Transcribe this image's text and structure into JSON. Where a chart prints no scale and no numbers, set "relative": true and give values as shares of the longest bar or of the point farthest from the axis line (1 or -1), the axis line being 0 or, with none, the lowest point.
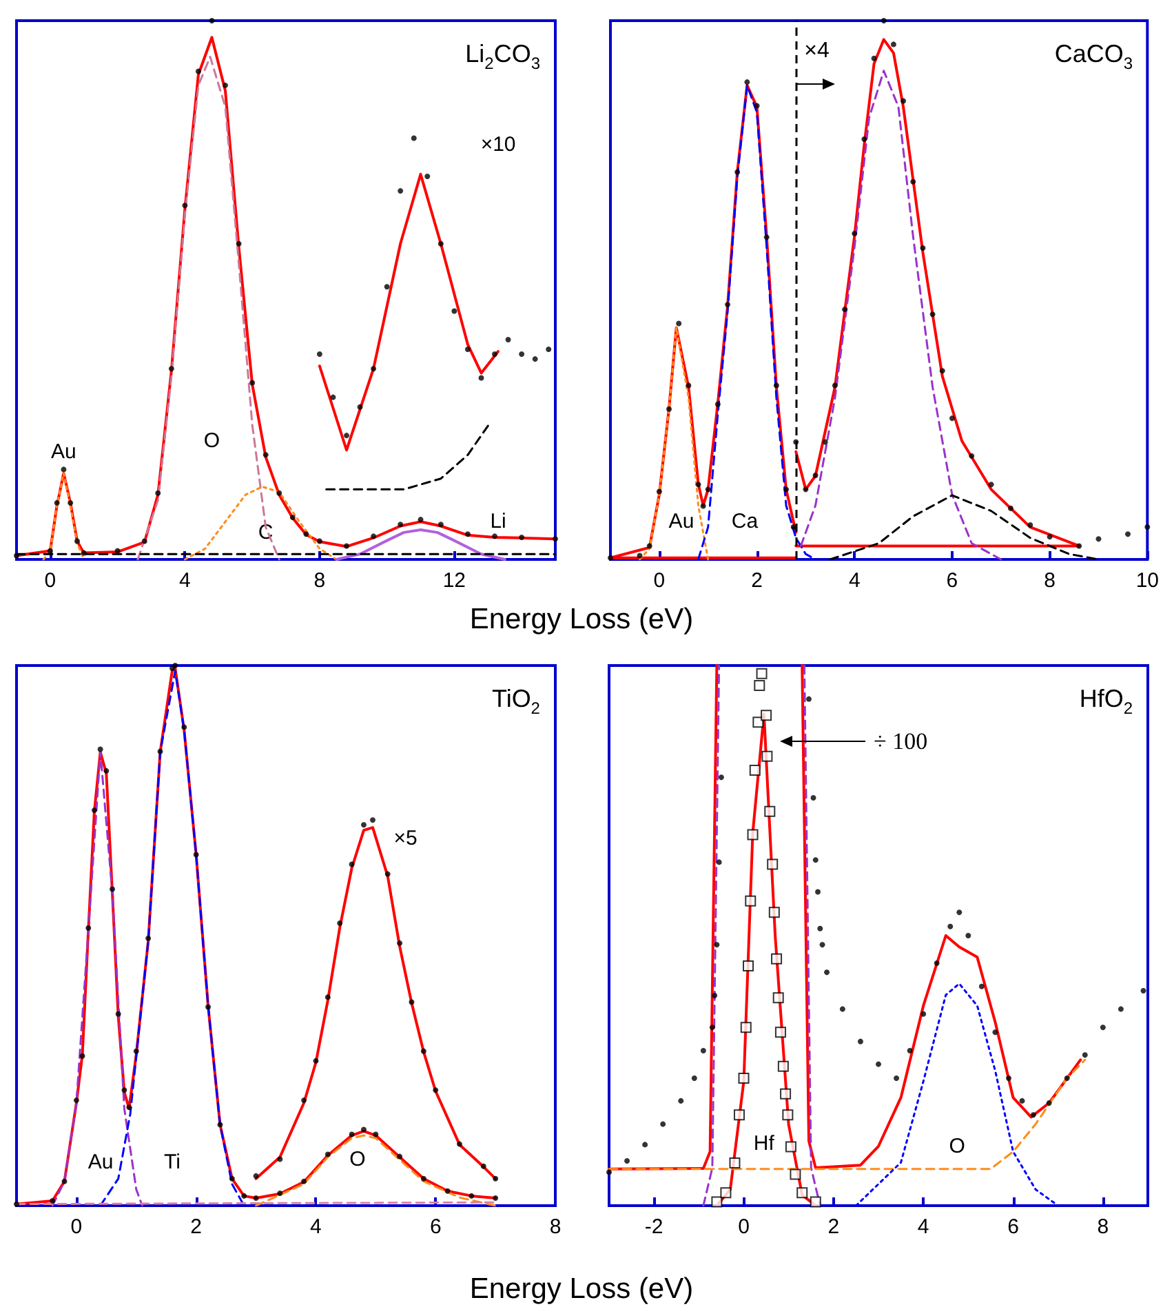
{
  "chart_data": [
    {
      "type": "line",
      "title": "Li$_{2}$CO$_{3}$",
      "xlabel": "Energy Loss (eV)",
      "relative": true,
      "xlim": [
        -1,
        15
      ],
      "xticks": [
        0,
        4,
        8,
        12
      ],
      "annotations": [
        "Au",
        "O",
        "C",
        "Li",
        "×10"
      ],
      "series": [
        {
          "type": "scatter",
          "marker": "circle",
          "color": "#000000",
          "x": [
            -1,
            0,
            0.2,
            0.4,
            0.6,
            0.8,
            1,
            2,
            2.8,
            3.2,
            3.6,
            4,
            4.4,
            4.8,
            5.2,
            5.6,
            6,
            6.4,
            6.8,
            7.2,
            7.6,
            8,
            8.8,
            9.6,
            10.4,
            11,
            11.6,
            12.4,
            13.2,
            14,
            15
          ],
          "values": [
            0.007,
            0.016,
            0.105,
            0.167,
            0.105,
            0.034,
            0.012,
            0.016,
            0.034,
            0.123,
            0.354,
            0.657,
            0.906,
            1,
            0.88,
            0.586,
            0.328,
            0.194,
            0.123,
            0.078,
            0.047,
            0.034,
            0.025,
            0.043,
            0.065,
            0.074,
            0.065,
            0.047,
            0.043,
            0.041,
            0.038
          ]
        },
        {
          "line_style": "solid",
          "color": "#ff0000",
          "x": [
            -1,
            0,
            0.2,
            0.4,
            0.6,
            0.8,
            1,
            2,
            2.8,
            3.2,
            3.6,
            4,
            4.4,
            4.8,
            5.2,
            5.6,
            6,
            6.4,
            6.8,
            7.2,
            7.6,
            8,
            8.8,
            9.6,
            10.4,
            11,
            11.6,
            12.4,
            13.2,
            14,
            15
          ],
          "values": [
            0.007,
            0.016,
            0.1,
            0.16,
            0.105,
            0.034,
            0.012,
            0.014,
            0.032,
            0.12,
            0.35,
            0.65,
            0.9,
            0.969,
            0.87,
            0.58,
            0.325,
            0.19,
            0.12,
            0.077,
            0.046,
            0.033,
            0.024,
            0.04,
            0.062,
            0.07,
            0.062,
            0.045,
            0.041,
            0.04,
            0.038
          ]
        },
        {
          "line_style": "dotted",
          "color": "#ff8c1a",
          "x": [
            -0.2,
            0,
            0.2,
            0.4,
            0.6,
            0.8,
            1
          ],
          "values": [
            0,
            0.015,
            0.1,
            0.16,
            0.1,
            0.03,
            0
          ]
        },
        {
          "line_style": "dashed",
          "color": "#cc7799",
          "x": [
            2.6,
            3.2,
            3.6,
            4,
            4.4,
            4.75,
            5.2,
            5.6,
            6,
            6.4,
            6.8
          ],
          "values": [
            0,
            0.11,
            0.34,
            0.64,
            0.88,
            0.933,
            0.84,
            0.55,
            0.25,
            0.06,
            0
          ]
        },
        {
          "line_style": "dotted",
          "color": "#ff8c1a",
          "x": [
            4,
            4.6,
            5.2,
            5.8,
            6.3,
            6.8,
            7.4,
            8,
            8.5
          ],
          "values": [
            0,
            0.02,
            0.07,
            0.12,
            0.135,
            0.125,
            0.07,
            0.02,
            0
          ]
        },
        {
          "line_style": "solid",
          "color": "#b060e0",
          "x": [
            8.5,
            9.2,
            10,
            10.5,
            11,
            11.5,
            12,
            12.8,
            13.5
          ],
          "values": [
            0,
            0.01,
            0.035,
            0.05,
            0.055,
            0.05,
            0.035,
            0.01,
            0
          ]
        },
        {
          "line_style": "dashed",
          "color": "#000000",
          "x": [
            -1,
            15
          ],
          "values": [
            0.01,
            0.01
          ]
        },
        {
          "type": "scatter",
          "marker": "circle",
          "color": "#000000",
          "x": [
            8,
            8.4,
            8.8,
            9.2,
            9.6,
            10,
            10.4,
            10.8,
            11.2,
            11.6,
            12,
            12.4,
            12.8,
            13.2,
            13.6,
            14,
            14.4,
            14.8
          ],
          "values": [
            0.381,
            0.301,
            0.23,
            0.283,
            0.354,
            0.506,
            0.684,
            0.782,
            0.711,
            0.586,
            0.461,
            0.39,
            0.337,
            0.381,
            0.408,
            0.381,
            0.372,
            0.39
          ]
        },
        {
          "line_style": "solid",
          "color": "#ff0000",
          "x": [
            8,
            8.8,
            9.6,
            10.4,
            11,
            11.6,
            12.4,
            12.8,
            13.3
          ],
          "values": [
            0.359,
            0.203,
            0.354,
            0.586,
            0.715,
            0.586,
            0.399,
            0.346,
            0.386
          ]
        },
        {
          "line_style": "dashed",
          "color": "#000000",
          "x": [
            8.2,
            10.5,
            11.6,
            12.4,
            13
          ],
          "values": [
            0.13,
            0.13,
            0.15,
            0.194,
            0.248
          ]
        }
      ]
    },
    {
      "type": "line",
      "title": "CaCO$_{3}$",
      "relative": true,
      "xlim": [
        -1,
        10
      ],
      "xticks": [
        0,
        2,
        4,
        6,
        8,
        10
      ],
      "annotations": [
        "Au",
        "Ca"
      ],
      "ref_lines": [
        {
          "axis": "x",
          "value": 2.8,
          "label": "×4",
          "color": "#000000",
          "line_style": "dashed"
        }
      ],
      "series": [
        {
          "type": "scatter",
          "marker": "circle",
          "color": "#000000",
          "x": [
            -1,
            -0.4,
            -0.2,
            0,
            0.2,
            0.4,
            0.6,
            0.8,
            0.9,
            1,
            1.2,
            1.4,
            1.6,
            1.8,
            2,
            2.2,
            2.4,
            2.6,
            2.75
          ],
          "values": [
            0.003,
            0.007,
            0.025,
            0.126,
            0.279,
            0.438,
            0.323,
            0.139,
            0.099,
            0.13,
            0.288,
            0.473,
            0.719,
            0.886,
            0.842,
            0.598,
            0.323,
            0.13,
            0.06
          ]
        },
        {
          "type": "scatter",
          "marker": "circle",
          "color": "#000000",
          "x": [
            2.8,
            3,
            3.2,
            3.4,
            3.6,
            3.8,
            4,
            4.2,
            4.4,
            4.6,
            4.8,
            5,
            5.2,
            5.4,
            5.6,
            5.8,
            6,
            6.4,
            6.8,
            7.2,
            7.6,
            8,
            8.6,
            9,
            9.6,
            10
          ],
          "values": [
            0.218,
            0.13,
            0.156,
            0.218,
            0.323,
            0.464,
            0.605,
            0.78,
            0.93,
            1,
            0.956,
            0.851,
            0.701,
            0.578,
            0.455,
            0.35,
            0.262,
            0.192,
            0.139,
            0.095,
            0.064,
            0.042,
            0.025,
            0.038,
            0.047,
            0.06
          ]
        },
        {
          "line_style": "solid",
          "color": "#ff0000",
          "x": [
            -1,
            -0.2,
            0,
            0.2,
            0.35,
            0.6,
            0.8,
            0.9,
            1,
            1.2,
            1.4,
            1.6,
            1.8,
            2,
            2.2,
            2.4,
            2.6,
            2.8
          ],
          "values": [
            0.003,
            0.022,
            0.12,
            0.28,
            0.43,
            0.32,
            0.14,
            0.1,
            0.13,
            0.29,
            0.47,
            0.72,
            0.88,
            0.84,
            0.6,
            0.32,
            0.13,
            0.05
          ]
        },
        {
          "line_style": "solid",
          "color": "#ff0000",
          "x": [
            2.8,
            3,
            3.2,
            3.6,
            4,
            4.2,
            4.4,
            4.6,
            4.8,
            5,
            5.4,
            5.8,
            6.2,
            6.8,
            7.6,
            8.6
          ],
          "values": [
            0.2,
            0.13,
            0.155,
            0.32,
            0.6,
            0.77,
            0.92,
            0.965,
            0.94,
            0.84,
            0.57,
            0.34,
            0.22,
            0.13,
            0.06,
            0.025
          ]
        },
        {
          "line_style": "solid",
          "color": "#ff0000",
          "x": [
            -1,
            2.8
          ],
          "values": [
            0.003,
            0.003
          ]
        },
        {
          "line_style": "solid",
          "color": "#ff0000",
          "x": [
            2.8,
            8.6
          ],
          "values": [
            0.025,
            0.025
          ]
        },
        {
          "line_style": "dotted",
          "color": "#ff8c1a",
          "x": [
            -0.4,
            -0.2,
            0,
            0.2,
            0.35,
            0.6,
            0.8,
            1
          ],
          "values": [
            0,
            0.02,
            0.12,
            0.28,
            0.43,
            0.3,
            0.1,
            0
          ]
        },
        {
          "line_style": "dashed",
          "color": "#0000ff",
          "x": [
            0.8,
            1,
            1.2,
            1.4,
            1.6,
            1.8,
            2,
            2.2,
            2.4,
            2.6,
            2.8,
            3,
            3.2
          ],
          "values": [
            0,
            0.06,
            0.27,
            0.46,
            0.71,
            0.88,
            0.83,
            0.58,
            0.3,
            0.1,
            0.04,
            0.01,
            0
          ]
        },
        {
          "line_style": "dashed",
          "color": "#9933cc",
          "x": [
            2.9,
            3.2,
            3.6,
            4,
            4.3,
            4.6,
            4.9,
            5.2,
            5.6,
            6,
            6.4,
            7
          ],
          "values": [
            0.025,
            0.1,
            0.3,
            0.58,
            0.82,
            0.907,
            0.84,
            0.6,
            0.32,
            0.12,
            0.03,
            0
          ]
        },
        {
          "line_style": "dashed",
          "color": "#000000",
          "x": [
            3.5,
            4.5,
            5.2,
            6,
            6.8,
            7.6,
            8.4,
            9
          ],
          "values": [
            0,
            0.03,
            0.08,
            0.119,
            0.09,
            0.04,
            0.01,
            0
          ]
        }
      ]
    },
    {
      "type": "line",
      "title": "TiO$_{2}$",
      "xlabel": "Energy Loss (eV)",
      "relative": true,
      "xlim": [
        -1,
        8
      ],
      "xticks": [
        0,
        2,
        4,
        6,
        8
      ],
      "annotations": [
        "Au",
        "Ti",
        "O",
        "×5"
      ],
      "series": [
        {
          "type": "scatter",
          "marker": "circle",
          "color": "#000000",
          "x": [
            -1,
            -0.4,
            -0.2,
            0,
            0.1,
            0.2,
            0.3,
            0.4,
            0.5,
            0.6,
            0.7,
            0.8,
            0.88,
            1,
            1.2,
            1.4,
            1.6,
            1.65,
            1.8,
            2,
            2.2,
            2.4,
            2.6,
            2.8,
            3,
            3.4,
            3.8,
            4.2,
            4.6,
            4.8,
            5,
            5.4,
            5.8,
            6.2,
            6.6,
            7
          ],
          "values": [
            0.003,
            0.009,
            0.045,
            0.195,
            0.277,
            0.514,
            0.732,
            0.845,
            0.805,
            0.586,
            0.355,
            0.214,
            0.182,
            0.286,
            0.495,
            0.841,
            0.995,
            1,
            0.886,
            0.65,
            0.368,
            0.15,
            0.05,
            0.018,
            0.014,
            0.023,
            0.045,
            0.095,
            0.132,
            0.141,
            0.132,
            0.091,
            0.05,
            0.027,
            0.018,
            0.014
          ]
        },
        {
          "type": "scatter",
          "marker": "circle",
          "color": "#000000",
          "x": [
            3,
            3.4,
            3.8,
            4,
            4.2,
            4.4,
            4.6,
            4.8,
            4.95,
            5.2,
            5.4,
            5.6,
            5.8,
            6,
            6.4,
            6.8,
            7
          ],
          "values": [
            0.055,
            0.086,
            0.195,
            0.268,
            0.386,
            0.523,
            0.632,
            0.705,
            0.714,
            0.614,
            0.486,
            0.377,
            0.286,
            0.214,
            0.114,
            0.073,
            0.05
          ]
        },
        {
          "line_style": "solid",
          "color": "#ff0000",
          "x": [
            -1,
            -0.4,
            -0.2,
            0,
            0.1,
            0.2,
            0.3,
            0.4,
            0.5,
            0.6,
            0.7,
            0.8,
            0.88,
            1,
            1.2,
            1.4,
            1.6,
            1.65,
            1.8,
            2,
            2.2,
            2.4,
            2.6,
            2.8,
            3,
            3.4,
            3.8,
            4.2,
            4.6,
            4.8,
            5,
            5.4,
            5.8,
            6.2,
            6.6,
            7
          ],
          "values": [
            0.003,
            0.009,
            0.045,
            0.19,
            0.28,
            0.51,
            0.73,
            0.84,
            0.8,
            0.58,
            0.35,
            0.21,
            0.18,
            0.28,
            0.49,
            0.84,
            0.99,
            0.995,
            0.88,
            0.65,
            0.37,
            0.15,
            0.05,
            0.018,
            0.014,
            0.022,
            0.044,
            0.093,
            0.13,
            0.138,
            0.13,
            0.09,
            0.05,
            0.027,
            0.018,
            0.014
          ]
        },
        {
          "line_style": "solid",
          "color": "#ff0000",
          "x": [
            3,
            3.4,
            3.8,
            4,
            4.2,
            4.4,
            4.6,
            4.8,
            4.95,
            5.2,
            5.4,
            5.6,
            5.8,
            6,
            6.4,
            6.8,
            7
          ],
          "values": [
            0.05,
            0.09,
            0.19,
            0.265,
            0.38,
            0.515,
            0.625,
            0.695,
            0.7,
            0.61,
            0.48,
            0.375,
            0.285,
            0.212,
            0.113,
            0.072,
            0.05
          ]
        },
        {
          "line_style": "dashed",
          "color": "#9933cc",
          "x": [
            -0.4,
            -0.2,
            0,
            0.2,
            0.4,
            0.6,
            0.8,
            1,
            1.1
          ],
          "values": [
            0,
            0.045,
            0.19,
            0.51,
            0.84,
            0.58,
            0.18,
            0.03,
            0
          ]
        },
        {
          "line_style": "dashed",
          "color": "#0000ff",
          "x": [
            0.4,
            0.7,
            0.9,
            1.2,
            1.4,
            1.65,
            1.8,
            2,
            2.2,
            2.4,
            2.6,
            2.8
          ],
          "values": [
            0,
            0.05,
            0.17,
            0.49,
            0.84,
            0.99,
            0.88,
            0.65,
            0.37,
            0.15,
            0.04,
            0
          ]
        },
        {
          "line_style": "dashed",
          "color": "#ff8c1a",
          "x": [
            3,
            3.8,
            4.2,
            4.6,
            4.8,
            5,
            5.4,
            5.8,
            6.4,
            7
          ],
          "values": [
            0,
            0.04,
            0.09,
            0.125,
            0.13,
            0.125,
            0.085,
            0.045,
            0.015,
            0
          ]
        },
        {
          "line_style": "dashed",
          "color": "#e080a0",
          "x": [
            -1,
            7
          ],
          "values": [
            0.003,
            0.006
          ]
        }
      ]
    },
    {
      "type": "line",
      "title": "HfO$_{2}$",
      "relative": true,
      "xlim": [
        -3,
        9
      ],
      "xticks": [
        -2,
        0,
        2,
        4,
        6,
        8
      ],
      "annotations": [
        "Hf",
        "O",
        "÷ 100"
      ],
      "series": [
        {
          "type": "scatter",
          "marker": "circle",
          "color": "#000000",
          "x": [
            -3,
            -2.6,
            -2.2,
            -1.8,
            -1.4,
            -1.1,
            -0.9,
            -0.7,
            -0.65,
            -0.6,
            -0.55,
            -0.5,
            1.45,
            1.55,
            1.6,
            1.65,
            1.7,
            1.75,
            1.85,
            2.2,
            2.6,
            3,
            3.4,
            3.7,
            4,
            4.3,
            4.6,
            4.8,
            5,
            5.3,
            5.6,
            5.9,
            6.2,
            6.45,
            6.8,
            7.2,
            7.6,
            8,
            8.4,
            8.9
          ],
          "values": [
            0.062,
            0.083,
            0.113,
            0.151,
            0.194,
            0.236,
            0.287,
            0.33,
            0.389,
            0.483,
            0.636,
            0.793,
            0.938,
            0.755,
            0.64,
            0.581,
            0.513,
            0.483,
            0.432,
            0.364,
            0.304,
            0.262,
            0.236,
            0.287,
            0.355,
            0.449,
            0.517,
            0.543,
            0.5,
            0.406,
            0.321,
            0.236,
            0.194,
            0.168,
            0.19,
            0.236,
            0.279,
            0.33,
            0.364,
            0.398
          ]
        },
        {
          "type": "scatter",
          "marker": "square",
          "color": "#000000",
          "x": [
            -0.6,
            -0.4,
            -0.2,
            -0.1,
            0,
            0.05,
            0.1,
            0.15,
            0.2,
            0.25,
            0.32,
            0.35,
            0.4,
            0.5,
            0.52,
            0.58,
            0.64,
            0.68,
            0.73,
            0.77,
            0.82,
            0.88,
            0.93,
            0.98,
            1.05,
            1.15,
            1.3,
            1.6
          ],
          "values": [
            0.007,
            0.024,
            0.079,
            0.168,
            0.236,
            0.33,
            0.444,
            0.564,
            0.687,
            0.806,
            0.895,
            0.963,
            0.985,
            0.908,
            0.832,
            0.73,
            0.632,
            0.543,
            0.457,
            0.385,
            0.321,
            0.258,
            0.207,
            0.168,
            0.109,
            0.058,
            0.024,
            0.007
          ]
        },
        {
          "line_style": "solid",
          "color": "#ff0000",
          "x": [
            -0.6,
            -0.3,
            0,
            0.2,
            0.45,
            0.7,
            1,
            1.3,
            1.6
          ],
          "values": [
            0,
            0.03,
            0.23,
            0.69,
            0.91,
            0.5,
            0.15,
            0.02,
            0
          ]
        },
        {
          "line_style": "solid",
          "color": "#ff0000",
          "x": [
            -3,
            -0.9,
            -0.75,
            -0.6,
            0.4,
            1.3,
            1.45,
            1.6,
            2.6,
            3,
            3.5,
            4,
            4.5,
            4.8,
            5.2,
            5.6,
            6,
            6.4,
            6.8,
            7.5
          ],
          "values": [
            0.068,
            0.069,
            0.1,
            1,
            null,
            1,
            0.12,
            0.07,
            0.075,
            0.11,
            0.2,
            0.37,
            0.5,
            0.479,
            0.46,
            0.34,
            0.2,
            0.164,
            0.19,
            0.27
          ]
        },
        {
          "line_style": "dashed",
          "color": "#9933cc",
          "x": [
            -0.9,
            -0.7,
            -0.55,
            0.4,
            1.35,
            1.5,
            1.7
          ],
          "values": [
            0,
            0.07,
            1,
            null,
            1,
            0.07,
            0
          ]
        },
        {
          "line_style": "dashed",
          "color": "#ff8c1a",
          "x": [
            -3,
            5.5,
            6,
            6.5,
            7.2,
            7.6
          ],
          "values": [
            0.068,
            0.068,
            0.1,
            0.151,
            0.236,
            0.27
          ]
        },
        {
          "line_style": "dotted",
          "color": "#0000ff",
          "x": [
            2.5,
            3.5,
            4,
            4.5,
            4.8,
            5.2,
            5.6,
            6,
            6.5,
            7
          ],
          "values": [
            0,
            0.08,
            0.23,
            0.39,
            0.411,
            0.37,
            0.25,
            0.1,
            0.03,
            0
          ]
        }
      ]
    }
  ]
}
